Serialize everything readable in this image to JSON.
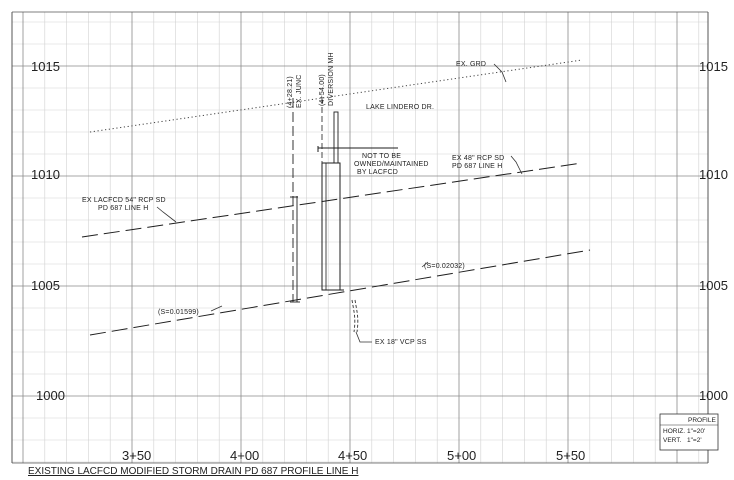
{
  "drawing_title": "EXISTING LACFCD MODIFIED STORM DRAIN PD 687 PROFILE LINE H",
  "elevations": [
    "1015",
    "1010",
    "1005",
    "1000"
  ],
  "stations": [
    "3+50",
    "4+00",
    "4+50",
    "5+00",
    "5+50"
  ],
  "labels": {
    "ex_grd": "EX. GRD",
    "street": "LAKE LINDERO DR.",
    "ex_junc_station": "(4+28.21)",
    "ex_junc": "EX. JUNC",
    "diversion_station": "(4+54.00)",
    "diversion_mh": "DIVERSION MH",
    "not_maintained": [
      "NOT TO BE",
      "OWNED/MAINTAINED",
      "BY LACFCD"
    ],
    "ex_48_rcp": [
      "EX 48\" RCP SD",
      "PD 687 LINE H"
    ],
    "ex_54_rcp": [
      "EX LACFCD 54\" RCP SD",
      "PD 687 LINE H"
    ],
    "slope_right": "(S=0.02032)",
    "slope_left": "(S=0.01599)",
    "ex_18_vcp": "EX 18\" VCP SS"
  },
  "profile_table": {
    "title": "PROFILE",
    "horiz_label": "HORIZ.",
    "horiz_value": "1\"=20'",
    "vert_label": "VERT.",
    "vert_value": "1\"=2'"
  },
  "colors": {
    "grid_major": "#8a8a8a",
    "grid_minor": "#d2d2d2",
    "linework": "#1e1e1e",
    "paper": "#ffffff"
  }
}
